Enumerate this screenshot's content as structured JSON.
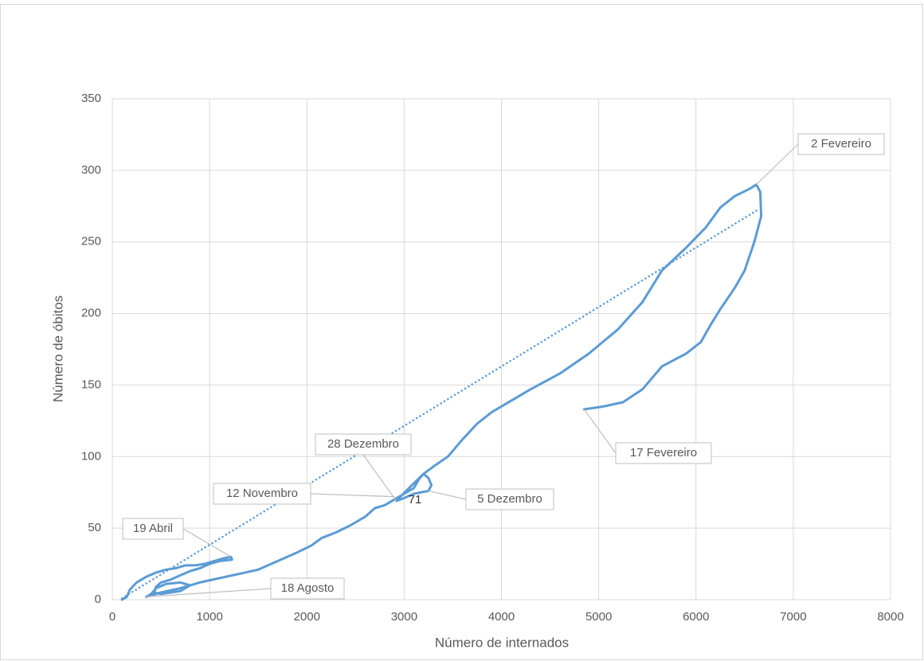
{
  "chart_data": {
    "type": "scatter-line",
    "x_label": "Número de internados",
    "y_label": "Número de óbitos",
    "xlim": [
      0,
      8000
    ],
    "xticks": [
      0,
      1000,
      2000,
      3000,
      4000,
      5000,
      6000,
      7000,
      8000
    ],
    "ylim": [
      0,
      350
    ],
    "yticks": [
      0,
      50,
      100,
      150,
      200,
      250,
      300,
      350
    ],
    "grid": true,
    "series": [
      {
        "color": "#5b9bd5",
        "x": [
          100,
          150,
          180,
          250,
          350,
          450,
          550,
          650,
          750,
          850,
          950,
          1050,
          1150,
          1220,
          1230,
          1100,
          1000,
          900,
          800,
          700,
          600,
          500,
          450,
          430,
          500,
          700,
          800,
          700,
          550,
          450,
          400,
          350,
          500,
          700,
          900,
          1100,
          1300,
          1500,
          1700,
          1900,
          2050,
          2150,
          2300,
          2450,
          2600,
          2700,
          2800,
          2900,
          3000,
          3100,
          3150,
          3200,
          3250,
          3280,
          3250,
          3100,
          3000,
          2920,
          3050,
          3200,
          3300,
          3450,
          3600,
          3750,
          3900,
          4050,
          4300,
          4600,
          4900,
          5200,
          5450,
          5650,
          5900,
          6100,
          6250,
          6400,
          6550,
          6620,
          6660,
          6670,
          6600,
          6500,
          6400,
          6250,
          6150,
          6050,
          5900,
          5650,
          5450,
          5250,
          5050,
          4850
        ],
        "values": [
          0,
          2,
          7,
          12,
          16,
          19,
          21,
          22,
          24,
          24,
          25,
          27,
          29,
          30,
          28,
          27,
          25,
          22,
          20,
          17,
          14,
          12,
          9,
          5,
          4,
          6,
          10,
          12,
          11,
          8,
          4,
          2,
          5,
          8,
          12,
          15,
          18,
          21,
          27,
          33,
          38,
          43,
          47,
          52,
          58,
          64,
          66,
          70,
          74,
          78,
          84,
          88,
          85,
          80,
          76,
          74,
          71,
          69,
          78,
          88,
          93,
          100,
          112,
          123,
          131,
          137,
          147,
          158,
          172,
          189,
          208,
          230,
          246,
          260,
          274,
          282,
          287,
          290,
          285,
          268,
          250,
          230,
          218,
          203,
          192,
          180,
          172,
          163,
          147,
          138,
          135,
          133
        ]
      },
      {
        "color": "#5b9bd5",
        "style": "dotted",
        "x": [
          100,
          6650
        ],
        "values": [
          1,
          273
        ]
      }
    ],
    "annotations": [
      {
        "text": "2 Fevereiro",
        "x": 6620,
        "y": 290
      },
      {
        "text": "17 Fevereiro",
        "x": 4850,
        "y": 133
      },
      {
        "text": "28 Dezembro",
        "x": 2920,
        "y": 69
      },
      {
        "text": "12 Novembro",
        "x": 2900,
        "y": 72
      },
      {
        "text": "5 Dezembro",
        "x": 3250,
        "y": 76
      },
      {
        "text": "19 Abril",
        "x": 1220,
        "y": 30
      },
      {
        "text": "18 Agosto",
        "x": 350,
        "y": 2
      },
      {
        "text": "71",
        "x": 3100,
        "y": 71
      }
    ]
  }
}
